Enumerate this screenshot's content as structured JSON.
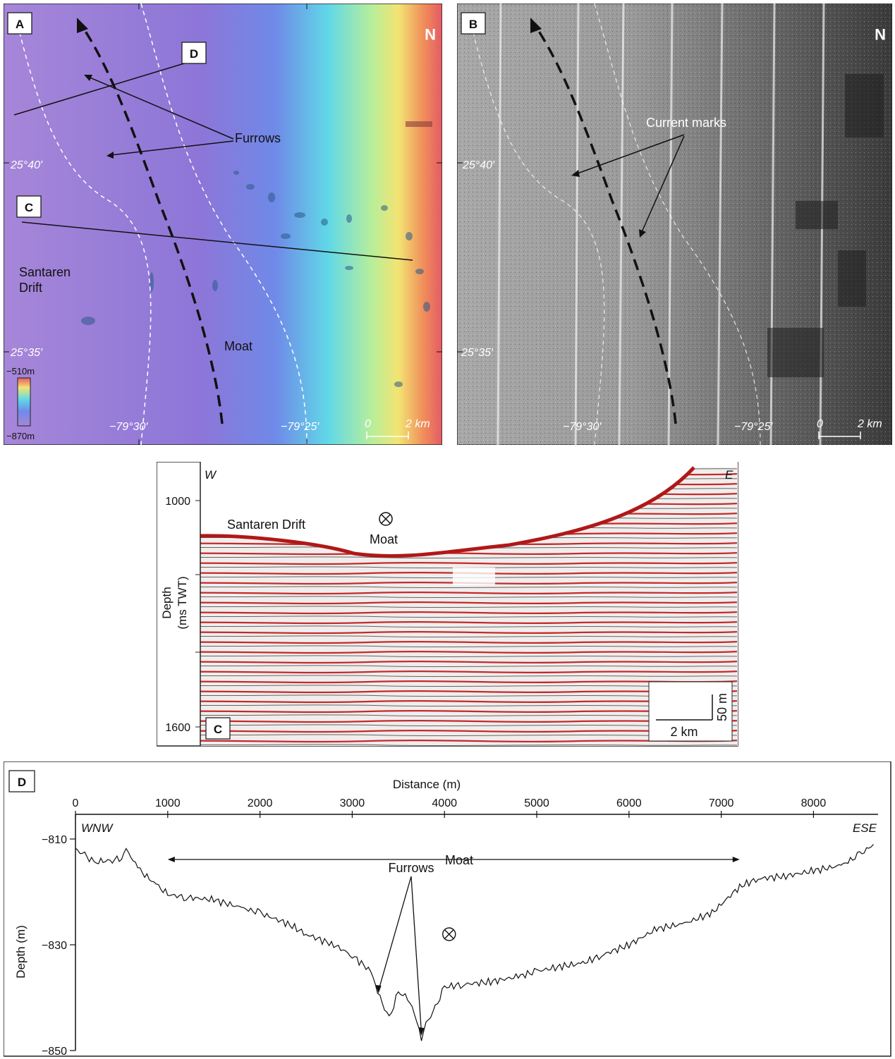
{
  "figure": {
    "panels": {
      "A": {
        "label": "A",
        "north": "N",
        "lat_labels": [
          "25°40′",
          "25°35′"
        ],
        "lon_labels": [
          "−79°30′",
          "−79°25′"
        ],
        "colorbar": {
          "top": "−510m",
          "bottom": "−870m"
        },
        "scale": {
          "zero": "0",
          "end": "2 km"
        },
        "callouts": {
          "d": "D",
          "c": "C"
        },
        "annotations": {
          "furrows": "Furrows",
          "drift_line1": "Santaren",
          "drift_line2": "Drift",
          "moat": "Moat"
        },
        "colors": {
          "deep": "#9a7ad8",
          "mid": "#6b8fe8",
          "shallow_cyan": "#58d8e8",
          "yellow": "#f0e070",
          "red": "#e85a5a"
        }
      },
      "B": {
        "label": "B",
        "north": "N",
        "lat_labels": [
          "25°40′",
          "25°35′"
        ],
        "lon_labels": [
          "−79°30′",
          "−79°25′"
        ],
        "scale": {
          "zero": "0",
          "end": "2 km"
        },
        "annotations": {
          "current_marks": "Current marks"
        }
      },
      "C": {
        "label": "C",
        "west": "W",
        "east": "E",
        "y_axis_label_line1": "Depth",
        "y_axis_label_line2": "(ms TWT)",
        "y_ticks": [
          "1000",
          "1600"
        ],
        "drift": "Santaren Drift",
        "moat": "Moat",
        "scale": {
          "vertical": "50 m",
          "horizontal": "2 km"
        }
      },
      "D": {
        "label": "D",
        "x_axis_label": "Distance (m)",
        "y_axis_label": "Depth (m)",
        "left_dir": "WNW",
        "right_dir": "ESE",
        "moat": "Moat",
        "furrows": "Furrows"
      }
    }
  },
  "chart_data": {
    "type": "line",
    "xlabel": "Distance (m)",
    "ylabel": "Depth (m)",
    "xlim": [
      0,
      8700
    ],
    "ylim": [
      -850,
      -802
    ],
    "x_ticks": [
      0,
      1000,
      2000,
      3000,
      4000,
      5000,
      6000,
      7000,
      8000
    ],
    "y_ticks": [
      -810,
      -830,
      -850
    ],
    "series": [
      {
        "x": [
          0,
          100,
          200,
          300,
          400,
          500,
          550,
          700,
          900,
          1000,
          1200,
          1500,
          1800,
          2000,
          2300,
          2500,
          2800,
          3000,
          3200,
          3300,
          3400,
          3500,
          3600,
          3700,
          3750,
          3800,
          3900,
          4000,
          4200,
          4500,
          4800,
          5000,
          5300,
          5500,
          5700,
          6000,
          6300,
          6600,
          6900,
          7200,
          7400,
          7700,
          8000,
          8300,
          8500,
          8650
        ],
        "y": [
          -812,
          -813,
          -814.5,
          -814.2,
          -814,
          -813.5,
          -812,
          -816,
          -819,
          -820.5,
          -821,
          -821.5,
          -823,
          -824,
          -826,
          -828,
          -830,
          -832,
          -835,
          -840,
          -844,
          -839,
          -840,
          -844,
          -848,
          -845,
          -842,
          -838,
          -837.5,
          -837,
          -836,
          -835,
          -834,
          -833.5,
          -832,
          -830,
          -827,
          -826,
          -824,
          -819,
          -817.5,
          -817,
          -816,
          -815,
          -813,
          -811
        ]
      }
    ],
    "annotations": [
      {
        "text": "Moat",
        "x_range": [
          1000,
          7200
        ]
      },
      {
        "text": "Furrows",
        "x": [
          3300,
          3750
        ]
      }
    ]
  }
}
